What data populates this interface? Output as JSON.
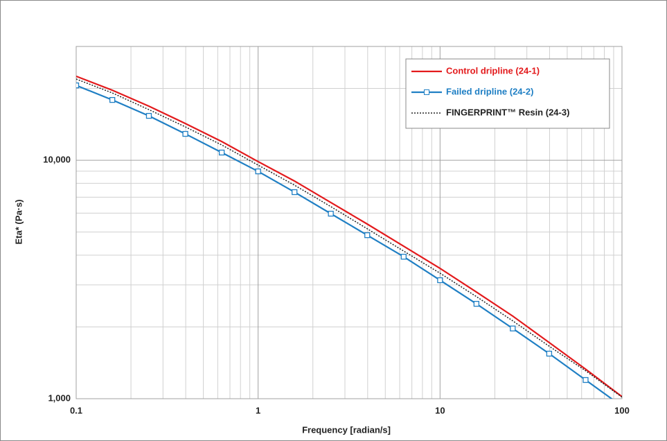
{
  "chart_data": {
    "type": "line",
    "x_label": "Frequency [radian/s]",
    "y_label": "Eta* (Pa·s)",
    "x": [
      0.1,
      0.158,
      0.251,
      0.398,
      0.631,
      1,
      1.585,
      2.51,
      3.98,
      6.31,
      10,
      15.85,
      25.1,
      39.8,
      63.1,
      100
    ],
    "series": [
      {
        "name": "Control dripline (24-1)",
        "color": "#e31a1c",
        "style": "solid",
        "marker": "none",
        "values": [
          22500,
          19660,
          16850,
          14260,
          11980,
          9870,
          8180,
          6650,
          5400,
          4360,
          3520,
          2800,
          2220,
          1720,
          1330,
          1020
        ]
      },
      {
        "name": "Failed dripline (24-2)",
        "color": "#1f7fc4",
        "style": "solid",
        "marker": "square",
        "values": [
          20600,
          17900,
          15350,
          12900,
          10770,
          8980,
          7350,
          5970,
          4850,
          3940,
          3140,
          2500,
          1970,
          1545,
          1198,
          930
        ]
      },
      {
        "name": "FINGERPRINT™ Resin (24-3)",
        "color": "#222222",
        "style": "dotted",
        "marker": "none",
        "values": [
          21900,
          19150,
          16300,
          13800,
          11590,
          9540,
          7860,
          6390,
          5160,
          4160,
          3360,
          2680,
          2120,
          1660,
          1310,
          1015
        ]
      }
    ],
    "xlim": [
      0.1,
      100
    ],
    "xticks": [
      0.1,
      1,
      10,
      100
    ],
    "ylim": [
      1000,
      30000
    ],
    "yticks": [
      {
        "value": 1000,
        "label": "1,000"
      },
      {
        "value": 10000,
        "label": "10,000"
      }
    ],
    "x_scale": "log",
    "y_scale": "log",
    "grid": true,
    "minor_grid": true,
    "legend": "upper right"
  }
}
